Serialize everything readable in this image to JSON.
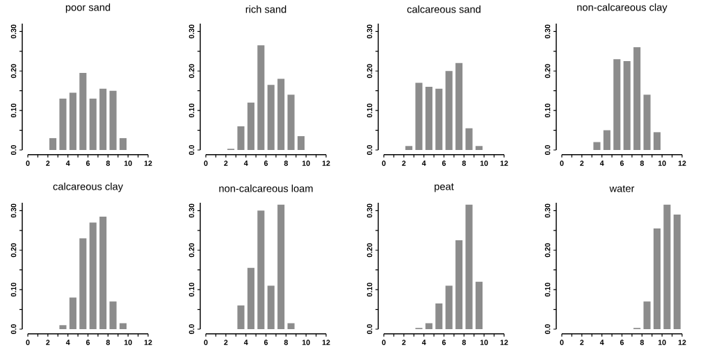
{
  "chart_data": [
    {
      "type": "histogram",
      "title": "poor sand",
      "bins": [
        0,
        1,
        2,
        3,
        4,
        5,
        6,
        7,
        8,
        9,
        10,
        11,
        12
      ],
      "values": [
        0,
        0,
        0.03,
        0.13,
        0.145,
        0.195,
        0.13,
        0.155,
        0.15,
        0.03,
        0,
        0
      ],
      "color": "#8c8c8c",
      "xlim": [
        0,
        12
      ],
      "ylim": [
        0,
        0.32
      ],
      "xticks": [
        0,
        {
          "value": 1,
          "label": null
        },
        2,
        {
          "value": 3,
          "label": null
        },
        4,
        {
          "value": 5,
          "label": null
        },
        6,
        {
          "value": 7,
          "label": null
        },
        8,
        {
          "value": 9,
          "label": null
        },
        10,
        {
          "value": 11,
          "label": null
        },
        12
      ],
      "yticks": [
        {
          "value": 0,
          "label": "0.0"
        },
        {
          "value": 0.05,
          "label": null
        },
        {
          "value": 0.1,
          "label": "0.10"
        },
        {
          "value": 0.15,
          "label": null
        },
        {
          "value": 0.2,
          "label": "0.20"
        },
        {
          "value": 0.25,
          "label": null
        },
        {
          "value": 0.3,
          "label": "0.30"
        }
      ]
    },
    {
      "type": "histogram",
      "title": "rich sand",
      "bins": [
        0,
        1,
        2,
        3,
        4,
        5,
        6,
        7,
        8,
        9,
        10,
        11,
        12
      ],
      "values": [
        0,
        0,
        0.003,
        0.06,
        0.12,
        0.265,
        0.165,
        0.18,
        0.14,
        0.035,
        0,
        0
      ],
      "color": "#8c8c8c",
      "xlim": [
        0,
        12
      ],
      "ylim": [
        0,
        0.32
      ],
      "xticks": [
        0,
        {
          "value": 1,
          "label": null
        },
        2,
        {
          "value": 3,
          "label": null
        },
        4,
        {
          "value": 5,
          "label": null
        },
        6,
        {
          "value": 7,
          "label": null
        },
        8,
        {
          "value": 9,
          "label": null
        },
        10,
        {
          "value": 11,
          "label": null
        },
        12
      ],
      "yticks": [
        {
          "value": 0,
          "label": "0.0"
        },
        {
          "value": 0.05,
          "label": null
        },
        {
          "value": 0.1,
          "label": "0.10"
        },
        {
          "value": 0.15,
          "label": null
        },
        {
          "value": 0.2,
          "label": "0.20"
        },
        {
          "value": 0.25,
          "label": null
        },
        {
          "value": 0.3,
          "label": "0.30"
        }
      ]
    },
    {
      "type": "histogram",
      "title": "calcareous sand",
      "bins": [
        0,
        1,
        2,
        3,
        4,
        5,
        6,
        7,
        8,
        9,
        10,
        11,
        12
      ],
      "values": [
        0,
        0,
        0.01,
        0.17,
        0.16,
        0.155,
        0.2,
        0.22,
        0.055,
        0.01,
        0,
        0
      ],
      "color": "#8c8c8c",
      "xlim": [
        0,
        12
      ],
      "ylim": [
        0,
        0.32
      ],
      "xticks": [
        0,
        {
          "value": 1,
          "label": null
        },
        2,
        {
          "value": 3,
          "label": null
        },
        4,
        {
          "value": 5,
          "label": null
        },
        6,
        {
          "value": 7,
          "label": null
        },
        8,
        {
          "value": 9,
          "label": null
        },
        10,
        {
          "value": 11,
          "label": null
        },
        12
      ],
      "yticks": [
        {
          "value": 0,
          "label": "0.0"
        },
        {
          "value": 0.05,
          "label": null
        },
        {
          "value": 0.1,
          "label": "0.10"
        },
        {
          "value": 0.15,
          "label": null
        },
        {
          "value": 0.2,
          "label": "0.20"
        },
        {
          "value": 0.25,
          "label": null
        },
        {
          "value": 0.3,
          "label": "0.30"
        }
      ]
    },
    {
      "type": "histogram",
      "title": "non-calcareous clay",
      "bins": [
        0,
        1,
        2,
        3,
        4,
        5,
        6,
        7,
        8,
        9,
        10,
        11,
        12
      ],
      "values": [
        0,
        0,
        0,
        0.02,
        0.05,
        0.23,
        0.225,
        0.26,
        0.14,
        0.045,
        0,
        0
      ],
      "color": "#8c8c8c",
      "xlim": [
        0,
        12
      ],
      "ylim": [
        0,
        0.32
      ],
      "xticks": [
        0,
        {
          "value": 1,
          "label": null
        },
        2,
        {
          "value": 3,
          "label": null
        },
        4,
        {
          "value": 5,
          "label": null
        },
        6,
        {
          "value": 7,
          "label": null
        },
        8,
        {
          "value": 9,
          "label": null
        },
        10,
        {
          "value": 11,
          "label": null
        },
        12
      ],
      "yticks": [
        {
          "value": 0,
          "label": "0.0"
        },
        {
          "value": 0.05,
          "label": null
        },
        {
          "value": 0.1,
          "label": "0.10"
        },
        {
          "value": 0.15,
          "label": null
        },
        {
          "value": 0.2,
          "label": "0.20"
        },
        {
          "value": 0.25,
          "label": null
        },
        {
          "value": 0.3,
          "label": "0.30"
        }
      ]
    },
    {
      "type": "histogram",
      "title": "calcareous clay",
      "bins": [
        0,
        1,
        2,
        3,
        4,
        5,
        6,
        7,
        8,
        9,
        10,
        11,
        12
      ],
      "values": [
        0,
        0,
        0,
        0.01,
        0.08,
        0.23,
        0.27,
        0.285,
        0.07,
        0.015,
        0,
        0
      ],
      "color": "#8c8c8c",
      "xlim": [
        0,
        12
      ],
      "ylim": [
        0,
        0.32
      ],
      "xticks": [
        0,
        {
          "value": 1,
          "label": null
        },
        2,
        {
          "value": 3,
          "label": null
        },
        4,
        {
          "value": 5,
          "label": null
        },
        6,
        {
          "value": 7,
          "label": null
        },
        8,
        {
          "value": 9,
          "label": null
        },
        10,
        {
          "value": 11,
          "label": null
        },
        12
      ],
      "yticks": [
        {
          "value": 0,
          "label": "0.0"
        },
        {
          "value": 0.05,
          "label": null
        },
        {
          "value": 0.1,
          "label": "0.10"
        },
        {
          "value": 0.15,
          "label": null
        },
        {
          "value": 0.2,
          "label": "0.20"
        },
        {
          "value": 0.25,
          "label": null
        },
        {
          "value": 0.3,
          "label": "0.30"
        }
      ]
    },
    {
      "type": "histogram",
      "title": "non-calcareous loam",
      "bins": [
        0,
        1,
        2,
        3,
        4,
        5,
        6,
        7,
        8,
        9,
        10,
        11,
        12
      ],
      "values": [
        0,
        0,
        0,
        0.06,
        0.155,
        0.3,
        0.11,
        0.315,
        0.015,
        0,
        0,
        0
      ],
      "color": "#8c8c8c",
      "xlim": [
        0,
        12
      ],
      "ylim": [
        0,
        0.32
      ],
      "xticks": [
        0,
        {
          "value": 1,
          "label": null
        },
        2,
        {
          "value": 3,
          "label": null
        },
        4,
        {
          "value": 5,
          "label": null
        },
        6,
        {
          "value": 7,
          "label": null
        },
        8,
        {
          "value": 9,
          "label": null
        },
        10,
        {
          "value": 11,
          "label": null
        },
        12
      ],
      "yticks": [
        {
          "value": 0,
          "label": "0.0"
        },
        {
          "value": 0.05,
          "label": null
        },
        {
          "value": 0.1,
          "label": "0.10"
        },
        {
          "value": 0.15,
          "label": null
        },
        {
          "value": 0.2,
          "label": "0.20"
        },
        {
          "value": 0.25,
          "label": null
        },
        {
          "value": 0.3,
          "label": "0.30"
        }
      ]
    },
    {
      "type": "histogram",
      "title": "peat",
      "bins": [
        0,
        1,
        2,
        3,
        4,
        5,
        6,
        7,
        8,
        9,
        10,
        11,
        12
      ],
      "values": [
        0,
        0,
        0,
        0.003,
        0.015,
        0.065,
        0.11,
        0.225,
        0.315,
        0.12,
        0,
        0
      ],
      "color": "#8c8c8c",
      "xlim": [
        0,
        12
      ],
      "ylim": [
        0,
        0.32
      ],
      "xticks": [
        0,
        {
          "value": 1,
          "label": null
        },
        2,
        {
          "value": 3,
          "label": null
        },
        4,
        {
          "value": 5,
          "label": null
        },
        6,
        {
          "value": 7,
          "label": null
        },
        8,
        {
          "value": 9,
          "label": null
        },
        10,
        {
          "value": 11,
          "label": null
        },
        12
      ],
      "yticks": [
        {
          "value": 0,
          "label": "0.0"
        },
        {
          "value": 0.05,
          "label": null
        },
        {
          "value": 0.1,
          "label": "0.10"
        },
        {
          "value": 0.15,
          "label": null
        },
        {
          "value": 0.2,
          "label": "0.20"
        },
        {
          "value": 0.25,
          "label": null
        },
        {
          "value": 0.3,
          "label": "0.30"
        }
      ]
    },
    {
      "type": "histogram",
      "title": "water",
      "bins": [
        0,
        1,
        2,
        3,
        4,
        5,
        6,
        7,
        8,
        9,
        10,
        11,
        12
      ],
      "values": [
        0,
        0,
        0,
        0,
        0,
        0,
        0,
        0.003,
        0.07,
        0.255,
        0.315,
        0.29
      ],
      "color": "#8c8c8c",
      "xlim": [
        0,
        12
      ],
      "ylim": [
        0,
        0.32
      ],
      "xticks": [
        0,
        {
          "value": 1,
          "label": null
        },
        2,
        {
          "value": 3,
          "label": null
        },
        4,
        {
          "value": 5,
          "label": null
        },
        6,
        {
          "value": 7,
          "label": null
        },
        8,
        {
          "value": 9,
          "label": null
        },
        10,
        {
          "value": 11,
          "label": null
        },
        12
      ],
      "yticks": [
        {
          "value": 0,
          "label": "0.0"
        },
        {
          "value": 0.05,
          "label": null
        },
        {
          "value": 0.1,
          "label": "0.10"
        },
        {
          "value": 0.15,
          "label": null
        },
        {
          "value": 0.2,
          "label": "0.20"
        },
        {
          "value": 0.25,
          "label": null
        },
        {
          "value": 0.3,
          "label": "0.30"
        }
      ]
    }
  ]
}
